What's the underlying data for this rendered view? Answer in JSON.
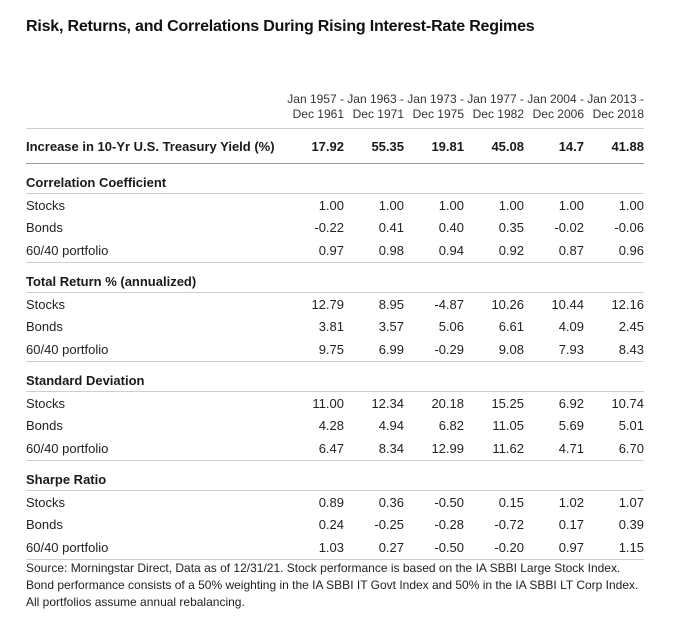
{
  "title": "Risk, Returns, and Correlations During Rising Interest-Rate Regimes",
  "periods": [
    {
      "line1": "Jan 1957 -",
      "line2": "Dec 1961"
    },
    {
      "line1": "Jan 1963 -",
      "line2": "Dec 1971"
    },
    {
      "line1": "Jan 1973 -",
      "line2": "Dec 1975"
    },
    {
      "line1": "Jan 1977 -",
      "line2": "Dec 1982"
    },
    {
      "line1": "Jan 2004 -",
      "line2": "Dec 2006"
    },
    {
      "line1": "Jan 2013 -",
      "line2": "Dec 2018"
    }
  ],
  "yield_row": {
    "label": "Increase in 10-Yr U.S. Treasury Yield (%)",
    "values": [
      "17.92",
      "55.35",
      "19.81",
      "45.08",
      "14.7",
      "41.88"
    ]
  },
  "sections": [
    {
      "heading": "Correlation Coefficient",
      "rows": [
        {
          "label": "Stocks",
          "values": [
            "1.00",
            "1.00",
            "1.00",
            "1.00",
            "1.00",
            "1.00"
          ]
        },
        {
          "label": "Bonds",
          "values": [
            "-0.22",
            "0.41",
            "0.40",
            "0.35",
            "-0.02",
            "-0.06"
          ]
        },
        {
          "label": "60/40 portfolio",
          "values": [
            "0.97",
            "0.98",
            "0.94",
            "0.92",
            "0.87",
            "0.96"
          ]
        }
      ]
    },
    {
      "heading": "Total Return % (annualized)",
      "rows": [
        {
          "label": "Stocks",
          "values": [
            "12.79",
            "8.95",
            "-4.87",
            "10.26",
            "10.44",
            "12.16"
          ]
        },
        {
          "label": "Bonds",
          "values": [
            "3.81",
            "3.57",
            "5.06",
            "6.61",
            "4.09",
            "2.45"
          ]
        },
        {
          "label": "60/40 portfolio",
          "values": [
            "9.75",
            "6.99",
            "-0.29",
            "9.08",
            "7.93",
            "8.43"
          ]
        }
      ]
    },
    {
      "heading": "Standard Deviation",
      "rows": [
        {
          "label": "Stocks",
          "values": [
            "11.00",
            "12.34",
            "20.18",
            "15.25",
            "6.92",
            "10.74"
          ]
        },
        {
          "label": "Bonds",
          "values": [
            "4.28",
            "4.94",
            "6.82",
            "11.05",
            "5.69",
            "5.01"
          ]
        },
        {
          "label": "60/40 portfolio",
          "values": [
            "6.47",
            "8.34",
            "12.99",
            "11.62",
            "4.71",
            "6.70"
          ]
        }
      ]
    },
    {
      "heading": "Sharpe Ratio",
      "rows": [
        {
          "label": "Stocks",
          "values": [
            "0.89",
            "0.36",
            "-0.50",
            "0.15",
            "1.02",
            "1.07"
          ]
        },
        {
          "label": "Bonds",
          "values": [
            "0.24",
            "-0.25",
            "-0.28",
            "-0.72",
            "0.17",
            "0.39"
          ]
        },
        {
          "label": "60/40 portfolio",
          "values": [
            "1.03",
            "0.27",
            "-0.50",
            "-0.20",
            "0.97",
            "1.15"
          ]
        }
      ]
    }
  ],
  "source": {
    "line1": "Source: Morningstar Direct, Data as of 12/31/21. Stock performance is based on the IA SBBI Large Stock Index.",
    "line2": "Bond performance consists of a 50% weighting in the IA SBBI IT Govt Index and 50% in the IA SBBI LT Corp Index.",
    "line3": "All portfolios assume annual rebalancing."
  }
}
